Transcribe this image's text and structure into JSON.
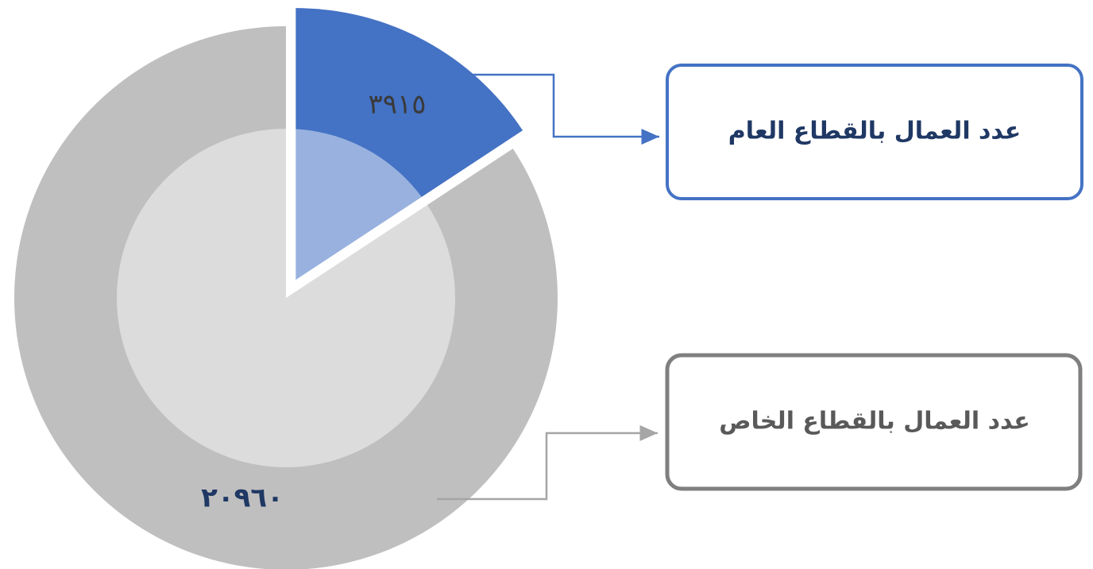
{
  "chart_data": {
    "type": "pie",
    "categories": [
      "عدد العمال بالقطاع العام",
      "عدد العمال بالقطاع الخاص"
    ],
    "values": [
      3915,
      20960
    ],
    "value_labels": [
      "٣٩١٥",
      "٢٠٩٦٠"
    ],
    "colors": [
      "#4472c4",
      "#bfbfbf"
    ]
  }
}
